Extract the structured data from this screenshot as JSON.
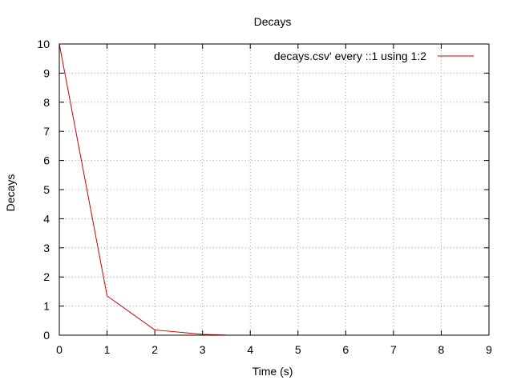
{
  "chart_data": {
    "type": "line",
    "title": "Decays",
    "xlabel": "Time (s)",
    "ylabel": "Decays",
    "xlim": [
      0,
      9
    ],
    "ylim": [
      0,
      10
    ],
    "xticks": [
      0,
      1,
      2,
      3,
      4,
      5,
      6,
      7,
      8,
      9
    ],
    "yticks": [
      0,
      1,
      2,
      3,
      4,
      5,
      6,
      7,
      8,
      9,
      10
    ],
    "grid": true,
    "legend_position": "top-right",
    "series": [
      {
        "name": "decays.csv' every ::1 using 1:2",
        "color": "#cc0000",
        "x": [
          0,
          1,
          2,
          3,
          3.5
        ],
        "y": [
          10,
          1.35,
          0.18,
          0.03,
          0.005
        ]
      }
    ]
  }
}
